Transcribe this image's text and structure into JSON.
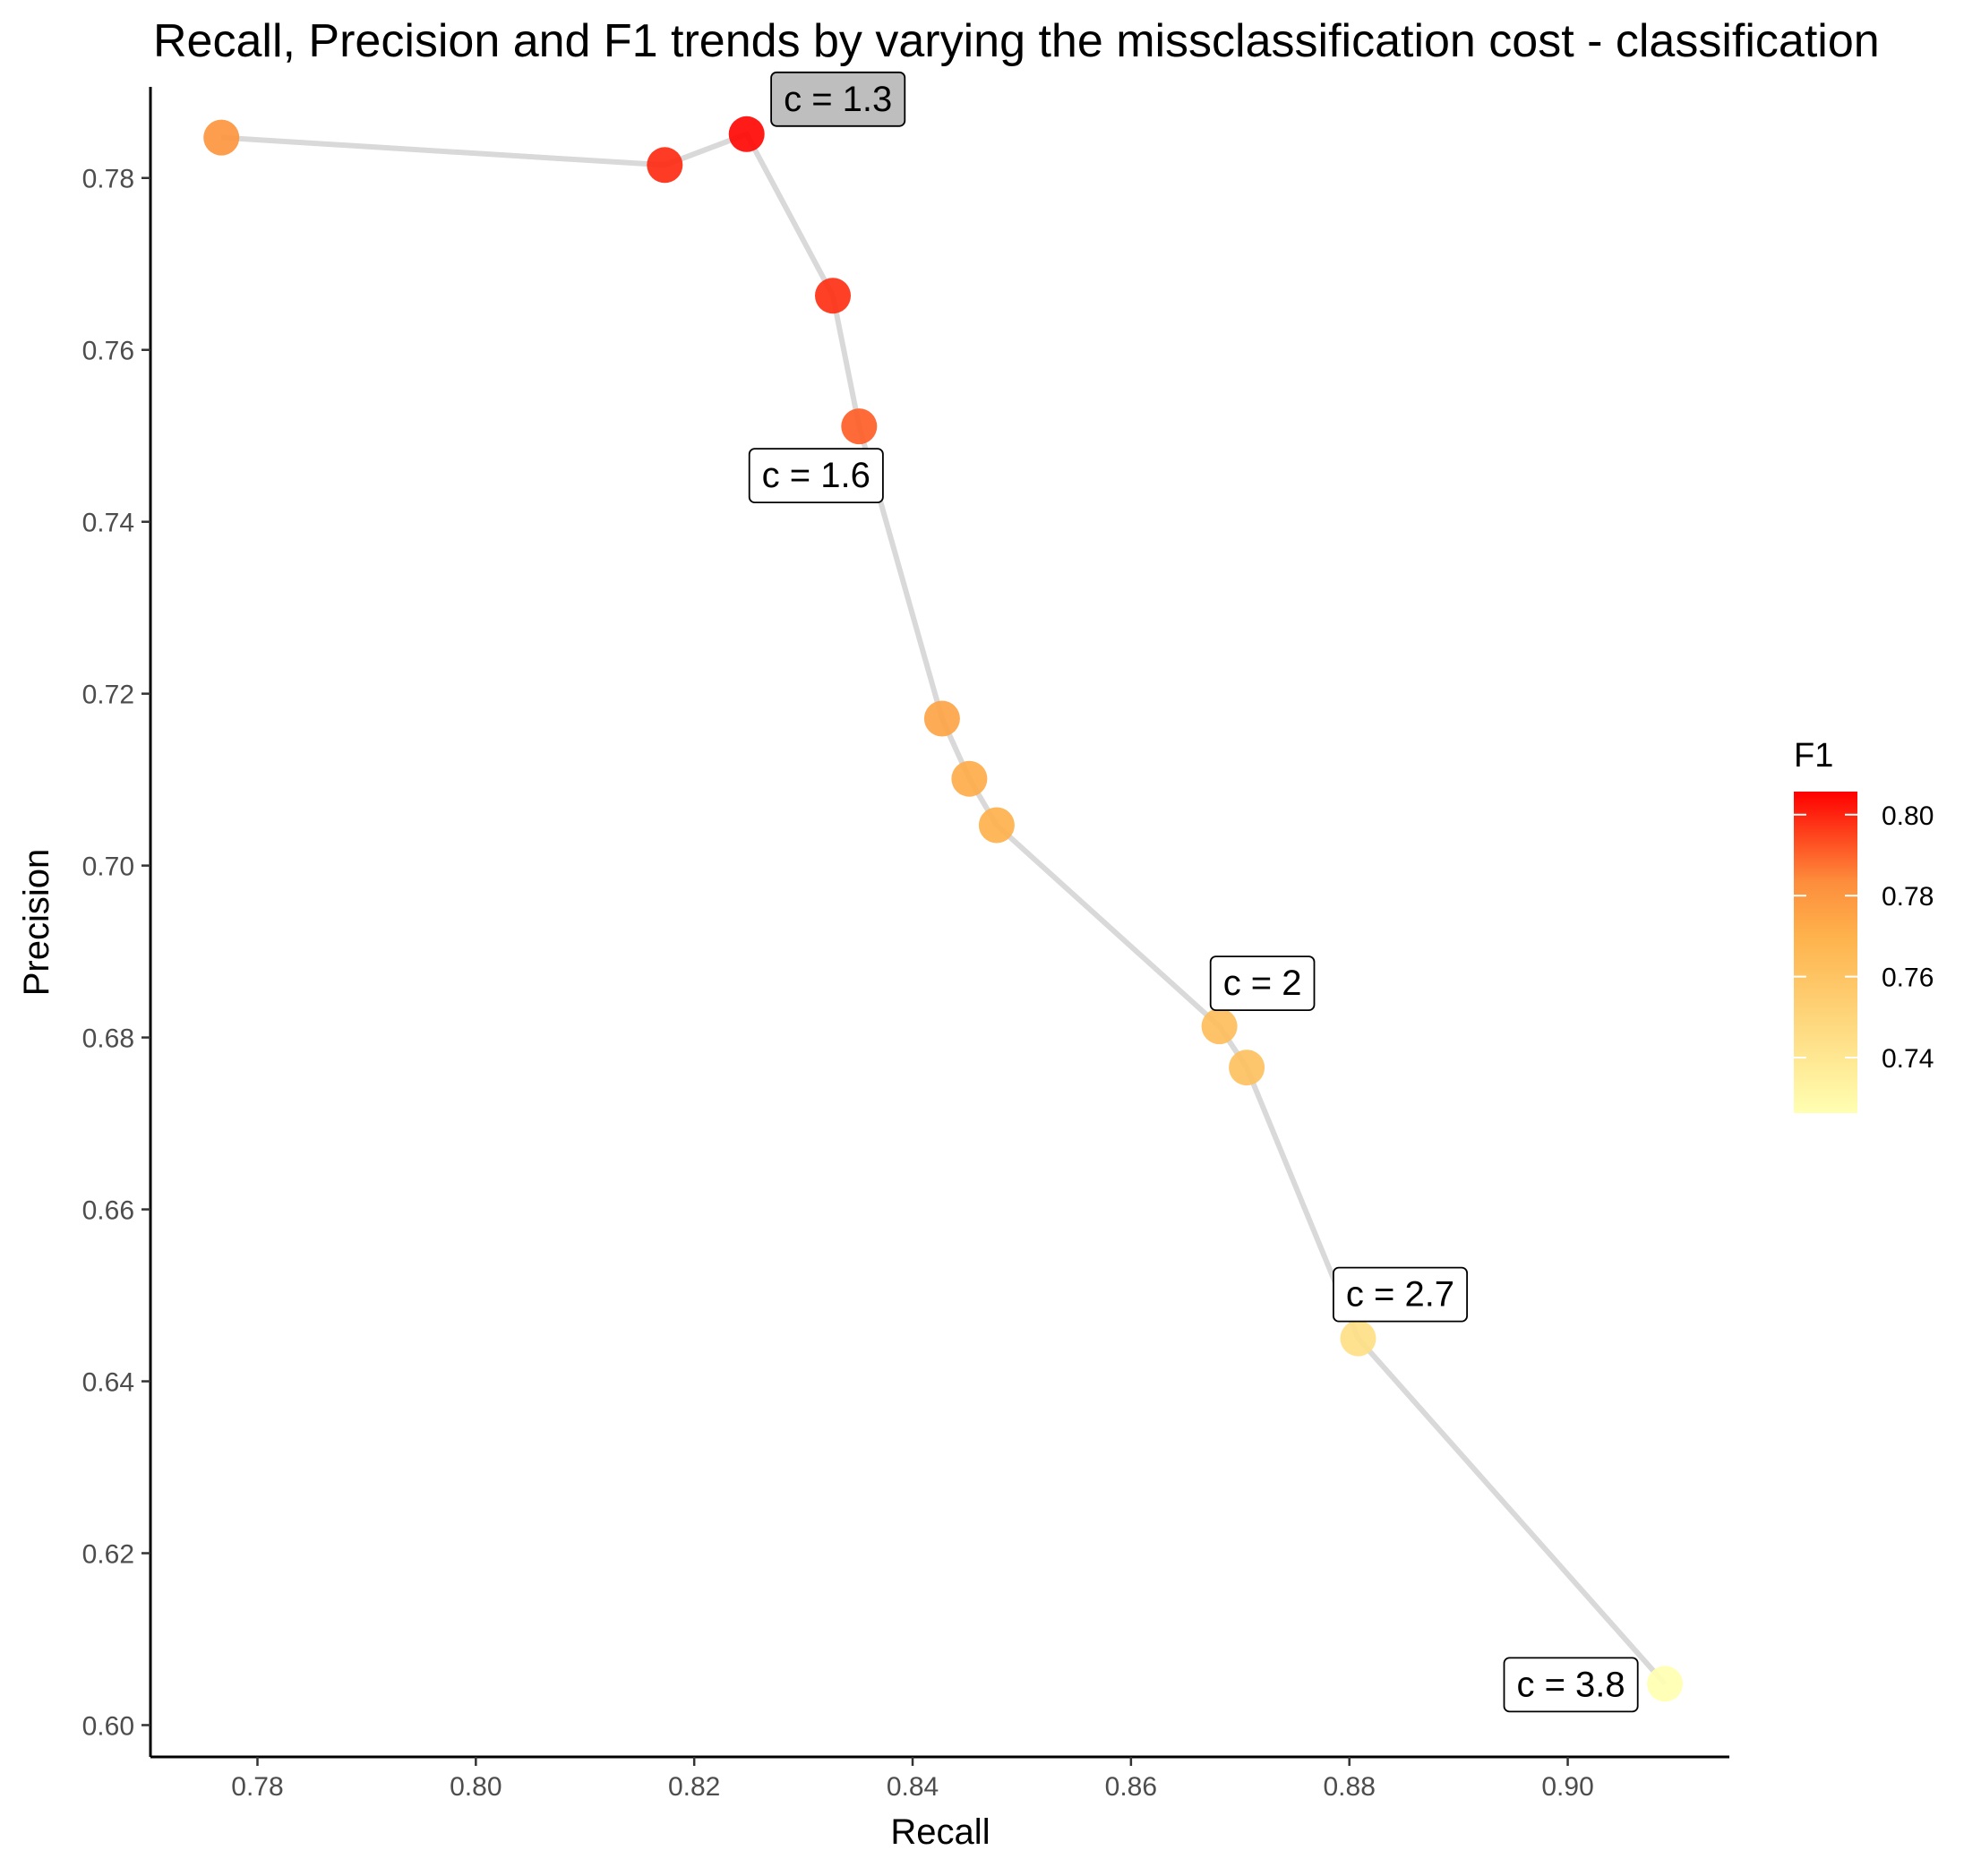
{
  "chart_data": {
    "type": "scatter",
    "title": "Recall, Precision and F1 trends by varying the missclassification cost - classification",
    "xlabel": "Recall",
    "ylabel": "Precision",
    "xlim": [
      0.7702,
      0.9148
    ],
    "ylim": [
      0.5963,
      0.7906
    ],
    "xticks": [
      0.78,
      0.8,
      0.82,
      0.84,
      0.86,
      0.88,
      0.9
    ],
    "yticks": [
      0.6,
      0.62,
      0.64,
      0.66,
      0.68,
      0.7,
      0.72,
      0.74,
      0.76,
      0.78
    ],
    "x_tick_labels": [
      "0.78",
      "0.80",
      "0.82",
      "0.84",
      "0.86",
      "0.88",
      "0.90"
    ],
    "y_tick_labels": [
      "0.60",
      "0.62",
      "0.64",
      "0.66",
      "0.68",
      "0.70",
      "0.72",
      "0.74",
      "0.76",
      "0.78"
    ],
    "grid": false,
    "connecting_line": true,
    "line_color": "#d9d9d9",
    "points": [
      {
        "x": 0.7767,
        "y": 0.7847,
        "f1": 0.7807
      },
      {
        "x": 0.8173,
        "y": 0.7815,
        "f1": 0.799
      },
      {
        "x": 0.8248,
        "y": 0.7851,
        "f1": 0.8045
      },
      {
        "x": 0.8327,
        "y": 0.7663,
        "f1": 0.7981
      },
      {
        "x": 0.8351,
        "y": 0.7511,
        "f1": 0.7909
      },
      {
        "x": 0.8427,
        "y": 0.7171,
        "f1": 0.7749
      },
      {
        "x": 0.8452,
        "y": 0.7101,
        "f1": 0.7718
      },
      {
        "x": 0.8477,
        "y": 0.7047,
        "f1": 0.7697
      },
      {
        "x": 0.8681,
        "y": 0.6813,
        "f1": 0.7636
      },
      {
        "x": 0.8706,
        "y": 0.6765,
        "f1": 0.7614
      },
      {
        "x": 0.8808,
        "y": 0.645,
        "f1": 0.7446
      },
      {
        "x": 0.9089,
        "y": 0.6048,
        "f1": 0.7263
      }
    ],
    "annotations": [
      {
        "label": "c = 1.3",
        "point_index": 2,
        "highlight": true,
        "fill": "#bebebe"
      },
      {
        "label": "c = 1.6",
        "point_index": 4,
        "highlight": false,
        "fill": "#ffffff"
      },
      {
        "label": "c = 2",
        "point_index": 8,
        "highlight": false,
        "fill": "#ffffff"
      },
      {
        "label": "c = 2.7",
        "point_index": 10,
        "highlight": false,
        "fill": "#ffffff"
      },
      {
        "label": "c = 3.8",
        "point_index": 11,
        "highlight": false,
        "fill": "#ffffff"
      }
    ],
    "legend": {
      "title": "F1",
      "position": "right",
      "type": "colorbar",
      "range": [
        0.7263,
        0.8057
      ],
      "breaks": [
        0.74,
        0.76,
        0.78,
        0.8
      ],
      "break_labels": [
        "0.74",
        "0.76",
        "0.78",
        "0.80"
      ],
      "colors": [
        "#ffffb2",
        "#feb24c",
        "#fd8d3c",
        "#ff0000"
      ],
      "color_stops": [
        0,
        0.55,
        0.72,
        1
      ]
    }
  }
}
